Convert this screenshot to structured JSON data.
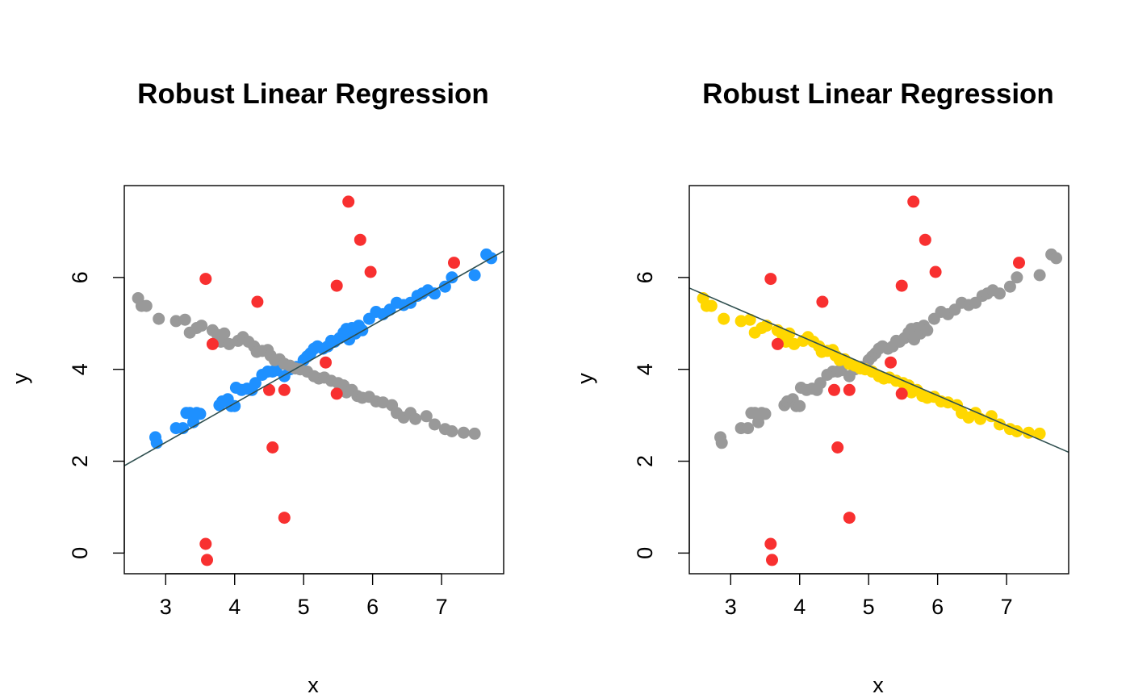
{
  "colors": {
    "left_fit": "#1E90FF",
    "right_fit": "#FFD700",
    "other": "#999999",
    "outlier": "#F83030",
    "line": "#2F4F4F",
    "frame": "#000000"
  },
  "chart_data": [
    {
      "type": "scatter",
      "title": "Robust Linear Regression",
      "xlabel": "x",
      "ylabel": "y",
      "xlim": [
        2.4,
        7.9
      ],
      "ylim": [
        -0.45,
        8.0
      ],
      "xticks": [
        3,
        4,
        5,
        6,
        7
      ],
      "yticks": [
        0,
        2,
        4,
        6
      ],
      "grid": false,
      "highlight_color_key": "left_fit",
      "fit_line": {
        "intercept": -0.14,
        "slope": 0.85
      },
      "series": [
        {
          "role": "highlighted",
          "color_key": "left_fit",
          "points": [
            [
              2.85,
              2.52
            ],
            [
              2.87,
              2.4
            ],
            [
              3.15,
              2.72
            ],
            [
              3.25,
              2.72
            ],
            [
              3.3,
              3.05
            ],
            [
              3.35,
              3.05
            ],
            [
              3.4,
              2.85
            ],
            [
              3.45,
              3.05
            ],
            [
              3.5,
              3.03
            ],
            [
              3.78,
              3.22
            ],
            [
              3.82,
              3.3
            ],
            [
              3.9,
              3.35
            ],
            [
              3.95,
              3.2
            ],
            [
              4.0,
              3.2
            ],
            [
              4.02,
              3.6
            ],
            [
              4.1,
              3.55
            ],
            [
              4.18,
              3.58
            ],
            [
              4.25,
              3.55
            ],
            [
              4.3,
              3.7
            ],
            [
              4.4,
              3.88
            ],
            [
              4.48,
              3.95
            ],
            [
              4.55,
              3.95
            ],
            [
              4.6,
              3.98
            ],
            [
              4.72,
              3.85
            ],
            [
              4.8,
              4.0
            ],
            [
              4.9,
              4.05
            ],
            [
              5.0,
              4.2
            ],
            [
              5.05,
              4.28
            ],
            [
              5.1,
              4.35
            ],
            [
              5.15,
              4.45
            ],
            [
              5.2,
              4.5
            ],
            [
              5.28,
              4.45
            ],
            [
              5.35,
              4.5
            ],
            [
              5.4,
              4.62
            ],
            [
              5.45,
              4.6
            ],
            [
              5.52,
              4.68
            ],
            [
              5.58,
              4.8
            ],
            [
              5.62,
              4.88
            ],
            [
              5.66,
              4.65
            ],
            [
              5.7,
              4.9
            ],
            [
              5.75,
              4.78
            ],
            [
              5.8,
              4.95
            ],
            [
              5.85,
              4.85
            ],
            [
              5.95,
              5.1
            ],
            [
              6.05,
              5.25
            ],
            [
              6.15,
              5.2
            ],
            [
              6.25,
              5.3
            ],
            [
              6.35,
              5.45
            ],
            [
              6.45,
              5.4
            ],
            [
              6.55,
              5.45
            ],
            [
              6.65,
              5.6
            ],
            [
              6.72,
              5.65
            ],
            [
              6.8,
              5.72
            ],
            [
              6.9,
              5.65
            ],
            [
              7.05,
              5.8
            ],
            [
              7.15,
              6.0
            ],
            [
              7.48,
              6.05
            ],
            [
              7.65,
              6.5
            ],
            [
              7.72,
              6.42
            ]
          ]
        },
        {
          "role": "other",
          "color_key": "other",
          "points": [
            [
              2.6,
              5.55
            ],
            [
              2.65,
              5.38
            ],
            [
              2.72,
              5.38
            ],
            [
              2.9,
              5.1
            ],
            [
              3.15,
              5.05
            ],
            [
              3.28,
              5.08
            ],
            [
              3.35,
              4.8
            ],
            [
              3.45,
              4.9
            ],
            [
              3.52,
              4.95
            ],
            [
              3.68,
              4.85
            ],
            [
              3.75,
              4.75
            ],
            [
              3.8,
              4.6
            ],
            [
              3.85,
              4.78
            ],
            [
              3.92,
              4.55
            ],
            [
              4.05,
              4.62
            ],
            [
              4.12,
              4.7
            ],
            [
              4.2,
              4.6
            ],
            [
              4.28,
              4.5
            ],
            [
              4.32,
              4.38
            ],
            [
              4.4,
              4.4
            ],
            [
              4.48,
              4.42
            ],
            [
              4.52,
              4.3
            ],
            [
              4.58,
              4.2
            ],
            [
              4.65,
              4.22
            ],
            [
              4.72,
              4.12
            ],
            [
              4.8,
              4.08
            ],
            [
              4.88,
              4.02
            ],
            [
              4.95,
              4.0
            ],
            [
              5.05,
              3.95
            ],
            [
              5.15,
              3.85
            ],
            [
              5.22,
              3.8
            ],
            [
              5.3,
              3.82
            ],
            [
              5.4,
              3.75
            ],
            [
              5.5,
              3.7
            ],
            [
              5.58,
              3.65
            ],
            [
              5.62,
              3.5
            ],
            [
              5.7,
              3.55
            ],
            [
              5.78,
              3.42
            ],
            [
              5.85,
              3.38
            ],
            [
              5.95,
              3.4
            ],
            [
              6.05,
              3.3
            ],
            [
              6.15,
              3.28
            ],
            [
              6.28,
              3.22
            ],
            [
              6.35,
              3.05
            ],
            [
              6.45,
              2.95
            ],
            [
              6.55,
              3.05
            ],
            [
              6.62,
              2.92
            ],
            [
              6.78,
              2.98
            ],
            [
              6.9,
              2.8
            ],
            [
              7.05,
              2.7
            ],
            [
              7.15,
              2.65
            ],
            [
              7.32,
              2.62
            ],
            [
              7.48,
              2.6
            ]
          ]
        },
        {
          "role": "outliers",
          "color_key": "outlier",
          "points": [
            [
              3.58,
              5.97
            ],
            [
              3.58,
              0.2
            ],
            [
              3.6,
              -0.15
            ],
            [
              3.68,
              4.55
            ],
            [
              4.33,
              5.47
            ],
            [
              4.5,
              3.55
            ],
            [
              4.55,
              2.3
            ],
            [
              4.72,
              3.55
            ],
            [
              4.72,
              0.77
            ],
            [
              5.32,
              4.15
            ],
            [
              5.48,
              3.47
            ],
            [
              5.48,
              5.82
            ],
            [
              5.65,
              7.65
            ],
            [
              5.82,
              6.82
            ],
            [
              5.97,
              6.12
            ],
            [
              7.18,
              6.32
            ]
          ]
        }
      ]
    },
    {
      "type": "scatter",
      "title": "Robust Linear Regression",
      "xlabel": "x",
      "ylabel": "y",
      "xlim": [
        2.4,
        7.9
      ],
      "ylim": [
        -0.45,
        8.0
      ],
      "xticks": [
        3,
        4,
        5,
        6,
        7
      ],
      "yticks": [
        0,
        2,
        4,
        6
      ],
      "grid": false,
      "highlight_color_key": "right_fit",
      "fit_line": {
        "intercept": 7.33,
        "slope": -0.65
      },
      "series": [
        {
          "role": "other",
          "color_key": "other",
          "points": [
            [
              2.85,
              2.52
            ],
            [
              2.87,
              2.4
            ],
            [
              3.15,
              2.72
            ],
            [
              3.25,
              2.72
            ],
            [
              3.3,
              3.05
            ],
            [
              3.35,
              3.05
            ],
            [
              3.4,
              2.85
            ],
            [
              3.45,
              3.05
            ],
            [
              3.5,
              3.03
            ],
            [
              3.78,
              3.22
            ],
            [
              3.82,
              3.3
            ],
            [
              3.9,
              3.35
            ],
            [
              3.95,
              3.2
            ],
            [
              4.0,
              3.2
            ],
            [
              4.02,
              3.6
            ],
            [
              4.1,
              3.55
            ],
            [
              4.18,
              3.58
            ],
            [
              4.25,
              3.55
            ],
            [
              4.3,
              3.7
            ],
            [
              4.4,
              3.88
            ],
            [
              4.48,
              3.95
            ],
            [
              4.55,
              3.95
            ],
            [
              4.6,
              3.98
            ],
            [
              4.72,
              3.85
            ],
            [
              4.8,
              4.0
            ],
            [
              4.9,
              4.05
            ],
            [
              5.0,
              4.2
            ],
            [
              5.05,
              4.28
            ],
            [
              5.1,
              4.35
            ],
            [
              5.15,
              4.45
            ],
            [
              5.2,
              4.5
            ],
            [
              5.28,
              4.45
            ],
            [
              5.35,
              4.5
            ],
            [
              5.4,
              4.62
            ],
            [
              5.45,
              4.6
            ],
            [
              5.52,
              4.68
            ],
            [
              5.58,
              4.8
            ],
            [
              5.62,
              4.88
            ],
            [
              5.66,
              4.65
            ],
            [
              5.7,
              4.9
            ],
            [
              5.75,
              4.78
            ],
            [
              5.8,
              4.95
            ],
            [
              5.85,
              4.85
            ],
            [
              5.95,
              5.1
            ],
            [
              6.05,
              5.25
            ],
            [
              6.15,
              5.2
            ],
            [
              6.25,
              5.3
            ],
            [
              6.35,
              5.45
            ],
            [
              6.45,
              5.4
            ],
            [
              6.55,
              5.45
            ],
            [
              6.65,
              5.6
            ],
            [
              6.72,
              5.65
            ],
            [
              6.8,
              5.72
            ],
            [
              6.9,
              5.65
            ],
            [
              7.05,
              5.8
            ],
            [
              7.15,
              6.0
            ],
            [
              7.48,
              6.05
            ],
            [
              7.65,
              6.5
            ],
            [
              7.72,
              6.42
            ]
          ]
        },
        {
          "role": "highlighted",
          "color_key": "right_fit",
          "points": [
            [
              2.6,
              5.55
            ],
            [
              2.65,
              5.38
            ],
            [
              2.72,
              5.38
            ],
            [
              2.9,
              5.1
            ],
            [
              3.15,
              5.05
            ],
            [
              3.28,
              5.08
            ],
            [
              3.35,
              4.8
            ],
            [
              3.45,
              4.9
            ],
            [
              3.52,
              4.95
            ],
            [
              3.68,
              4.85
            ],
            [
              3.75,
              4.75
            ],
            [
              3.8,
              4.6
            ],
            [
              3.85,
              4.78
            ],
            [
              3.92,
              4.55
            ],
            [
              4.05,
              4.62
            ],
            [
              4.12,
              4.7
            ],
            [
              4.2,
              4.6
            ],
            [
              4.28,
              4.5
            ],
            [
              4.32,
              4.38
            ],
            [
              4.4,
              4.4
            ],
            [
              4.48,
              4.42
            ],
            [
              4.52,
              4.3
            ],
            [
              4.58,
              4.2
            ],
            [
              4.65,
              4.22
            ],
            [
              4.72,
              4.12
            ],
            [
              4.8,
              4.08
            ],
            [
              4.88,
              4.02
            ],
            [
              4.95,
              4.0
            ],
            [
              5.05,
              3.95
            ],
            [
              5.15,
              3.85
            ],
            [
              5.22,
              3.8
            ],
            [
              5.3,
              3.82
            ],
            [
              5.4,
              3.75
            ],
            [
              5.5,
              3.7
            ],
            [
              5.58,
              3.65
            ],
            [
              5.62,
              3.5
            ],
            [
              5.7,
              3.55
            ],
            [
              5.78,
              3.42
            ],
            [
              5.85,
              3.38
            ],
            [
              5.95,
              3.4
            ],
            [
              6.05,
              3.3
            ],
            [
              6.15,
              3.28
            ],
            [
              6.28,
              3.22
            ],
            [
              6.35,
              3.05
            ],
            [
              6.45,
              2.95
            ],
            [
              6.55,
              3.05
            ],
            [
              6.62,
              2.92
            ],
            [
              6.78,
              2.98
            ],
            [
              6.9,
              2.8
            ],
            [
              7.05,
              2.7
            ],
            [
              7.15,
              2.65
            ],
            [
              7.32,
              2.62
            ],
            [
              7.48,
              2.6
            ]
          ]
        },
        {
          "role": "outliers",
          "color_key": "outlier",
          "points": [
            [
              3.58,
              5.97
            ],
            [
              3.58,
              0.2
            ],
            [
              3.6,
              -0.15
            ],
            [
              3.68,
              4.55
            ],
            [
              4.33,
              5.47
            ],
            [
              4.5,
              3.55
            ],
            [
              4.55,
              2.3
            ],
            [
              4.72,
              3.55
            ],
            [
              4.72,
              0.77
            ],
            [
              5.32,
              4.15
            ],
            [
              5.48,
              3.47
            ],
            [
              5.48,
              5.82
            ],
            [
              5.65,
              7.65
            ],
            [
              5.82,
              6.82
            ],
            [
              5.97,
              6.12
            ],
            [
              7.18,
              6.32
            ]
          ]
        }
      ]
    }
  ]
}
